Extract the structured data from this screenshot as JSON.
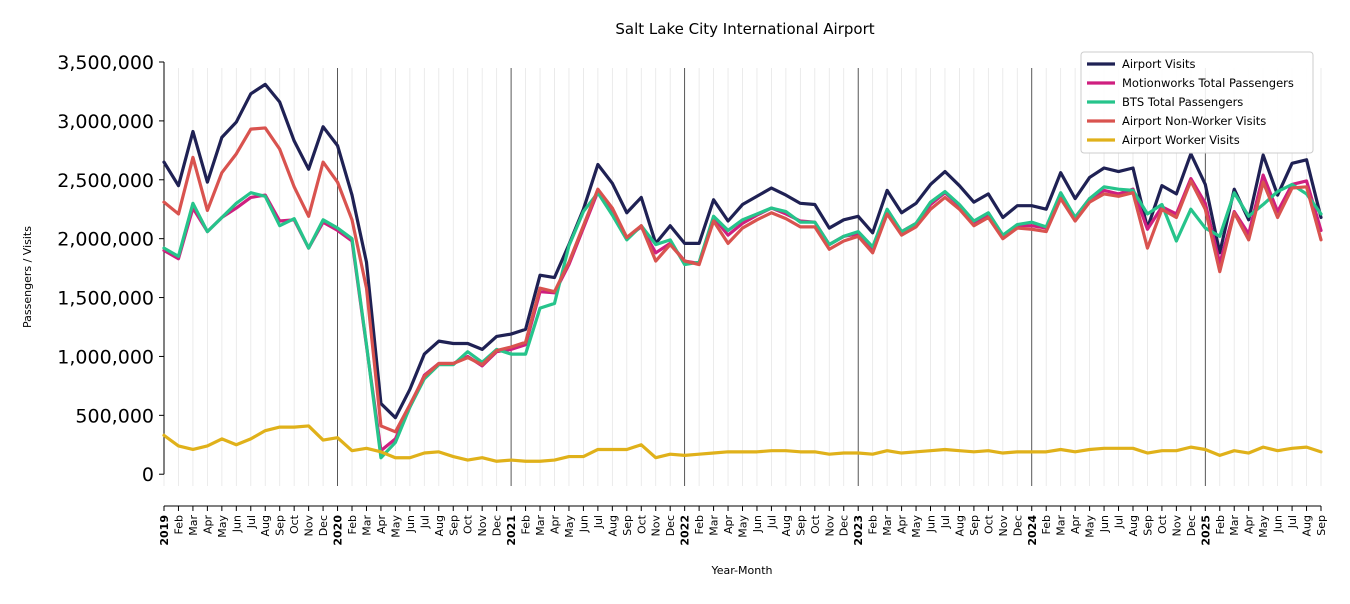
{
  "chart_data": {
    "type": "line",
    "title": "Salt Lake City International Airport",
    "xlabel": "Year-Month",
    "ylabel": "Passengers / Visits",
    "ylim": [
      -100000,
      3500000
    ],
    "yticks": [
      0,
      500000,
      1000000,
      1500000,
      2000000,
      2500000,
      3000000,
      3500000
    ],
    "ytick_labels": [
      "0",
      "500,000",
      "1,000,000",
      "1,500,000",
      "2,000,000",
      "2,500,000",
      "3,000,000",
      "3,500,000"
    ],
    "x_labels": [
      "2019",
      "Feb",
      "Mar",
      "Apr",
      "May",
      "Jun",
      "Jul",
      "Aug",
      "Sep",
      "Oct",
      "Nov",
      "Dec",
      "2020",
      "Feb",
      "Mar",
      "Apr",
      "May",
      "Jun",
      "Jul",
      "Aug",
      "Sep",
      "Oct",
      "Nov",
      "Dec",
      "2021",
      "Feb",
      "Mar",
      "Apr",
      "May",
      "Jun",
      "Jul",
      "Aug",
      "Sep",
      "Oct",
      "Nov",
      "Dec",
      "2022",
      "Feb",
      "Mar",
      "Apr",
      "May",
      "Jun",
      "Jul",
      "Aug",
      "Sep",
      "Oct",
      "Nov",
      "Dec",
      "2023",
      "Feb",
      "Mar",
      "Apr",
      "May",
      "Jun",
      "Jul",
      "Aug",
      "Sep",
      "Oct",
      "Nov",
      "Dec",
      "2024",
      "Feb",
      "Mar",
      "Apr",
      "May",
      "Jun",
      "Jul",
      "Aug",
      "Sep",
      "Oct",
      "Nov",
      "Dec",
      "2025",
      "Feb",
      "Mar",
      "Apr",
      "May",
      "Jun",
      "Jul",
      "Aug",
      "Sep"
    ],
    "year_starts": [
      0,
      12,
      24,
      36,
      48,
      60,
      72
    ],
    "grid": "vertical-monthly",
    "legend_position": "top-right",
    "series": [
      {
        "name": "Airport Visits",
        "color": "#1f2154",
        "values": [
          2650000,
          2450000,
          2910000,
          2480000,
          2860000,
          2990000,
          3230000,
          3310000,
          3160000,
          2830000,
          2590000,
          2950000,
          2790000,
          2370000,
          1800000,
          600000,
          480000,
          720000,
          1020000,
          1130000,
          1110000,
          1110000,
          1060000,
          1170000,
          1190000,
          1230000,
          1690000,
          1670000,
          1950000,
          2250000,
          2630000,
          2470000,
          2220000,
          2350000,
          1960000,
          2110000,
          1960000,
          1960000,
          2330000,
          2150000,
          2290000,
          2360000,
          2430000,
          2370000,
          2300000,
          2290000,
          2090000,
          2160000,
          2190000,
          2050000,
          2410000,
          2220000,
          2300000,
          2460000,
          2570000,
          2450000,
          2310000,
          2380000,
          2180000,
          2280000,
          2280000,
          2250000,
          2560000,
          2340000,
          2520000,
          2600000,
          2570000,
          2600000,
          2090000,
          2450000,
          2380000,
          2720000,
          2460000,
          1880000,
          2420000,
          2160000,
          2710000,
          2370000,
          2640000,
          2670000,
          2180000
        ]
      },
      {
        "name": "Motionworks Total Passengers",
        "color": "#cf1f7f",
        "values": [
          1900000,
          1830000,
          2260000,
          2060000,
          2180000,
          2260000,
          2350000,
          2370000,
          2150000,
          2160000,
          1920000,
          2140000,
          2070000,
          1980000,
          1090000,
          200000,
          300000,
          570000,
          840000,
          940000,
          940000,
          1000000,
          920000,
          1040000,
          1060000,
          1100000,
          1550000,
          1540000,
          1780000,
          2090000,
          2400000,
          2210000,
          2010000,
          2100000,
          1880000,
          1960000,
          1810000,
          1790000,
          2180000,
          2030000,
          2130000,
          2200000,
          2260000,
          2210000,
          2150000,
          2140000,
          1950000,
          2020000,
          2040000,
          1900000,
          2230000,
          2060000,
          2130000,
          2290000,
          2390000,
          2280000,
          2140000,
          2200000,
          2010000,
          2110000,
          2110000,
          2090000,
          2370000,
          2180000,
          2340000,
          2410000,
          2380000,
          2420000,
          2080000,
          2270000,
          2210000,
          2510000,
          2300000,
          1790000,
          2230000,
          2040000,
          2540000,
          2230000,
          2460000,
          2490000,
          2070000
        ]
      },
      {
        "name": "BTS Total Passengers",
        "color": "#26c48b",
        "values": [
          1920000,
          1850000,
          2300000,
          2060000,
          2180000,
          2300000,
          2390000,
          2360000,
          2110000,
          2170000,
          1920000,
          2160000,
          2090000,
          2000000,
          1100000,
          140000,
          270000,
          570000,
          810000,
          930000,
          930000,
          1040000,
          950000,
          1060000,
          1020000,
          1020000,
          1410000,
          1450000,
          1940000,
          2230000,
          2390000,
          2200000,
          1990000,
          2110000,
          1950000,
          1990000,
          1780000,
          1800000,
          2190000,
          2070000,
          2160000,
          2210000,
          2260000,
          2230000,
          2140000,
          2140000,
          1950000,
          2020000,
          2060000,
          1930000,
          2250000,
          2060000,
          2130000,
          2310000,
          2400000,
          2290000,
          2150000,
          2220000,
          2030000,
          2120000,
          2140000,
          2100000,
          2390000,
          2180000,
          2340000,
          2440000,
          2420000,
          2410000,
          2210000,
          2290000,
          1980000,
          2250000,
          2090000,
          2020000,
          2390000,
          2190000,
          2290000,
          2400000,
          2460000,
          2380000,
          2210000
        ]
      },
      {
        "name": "Airport Non-Worker Visits",
        "color": "#d9534f",
        "values": [
          2310000,
          2210000,
          2690000,
          2240000,
          2560000,
          2720000,
          2930000,
          2940000,
          2760000,
          2440000,
          2190000,
          2650000,
          2480000,
          2160000,
          1580000,
          410000,
          360000,
          590000,
          830000,
          940000,
          940000,
          990000,
          930000,
          1050000,
          1080000,
          1120000,
          1580000,
          1550000,
          1800000,
          2110000,
          2420000,
          2260000,
          2010000,
          2110000,
          1810000,
          1950000,
          1810000,
          1780000,
          2150000,
          1960000,
          2090000,
          2160000,
          2220000,
          2170000,
          2100000,
          2100000,
          1910000,
          1980000,
          2020000,
          1880000,
          2210000,
          2030000,
          2100000,
          2250000,
          2350000,
          2250000,
          2110000,
          2180000,
          2000000,
          2090000,
          2080000,
          2060000,
          2340000,
          2150000,
          2310000,
          2380000,
          2360000,
          2390000,
          1920000,
          2250000,
          2180000,
          2490000,
          2250000,
          1720000,
          2220000,
          1990000,
          2480000,
          2180000,
          2430000,
          2440000,
          1990000
        ]
      },
      {
        "name": "Airport Worker Visits",
        "color": "#e0b11a",
        "values": [
          330000,
          240000,
          210000,
          240000,
          300000,
          250000,
          300000,
          370000,
          400000,
          400000,
          410000,
          290000,
          310000,
          200000,
          220000,
          190000,
          140000,
          140000,
          180000,
          190000,
          150000,
          120000,
          140000,
          110000,
          120000,
          110000,
          110000,
          120000,
          150000,
          150000,
          210000,
          210000,
          210000,
          250000,
          140000,
          170000,
          160000,
          170000,
          180000,
          190000,
          190000,
          190000,
          200000,
          200000,
          190000,
          190000,
          170000,
          180000,
          180000,
          170000,
          200000,
          180000,
          190000,
          200000,
          210000,
          200000,
          190000,
          200000,
          180000,
          190000,
          190000,
          190000,
          210000,
          190000,
          210000,
          220000,
          220000,
          220000,
          180000,
          200000,
          200000,
          230000,
          210000,
          160000,
          200000,
          180000,
          230000,
          200000,
          220000,
          230000,
          190000
        ]
      }
    ]
  }
}
